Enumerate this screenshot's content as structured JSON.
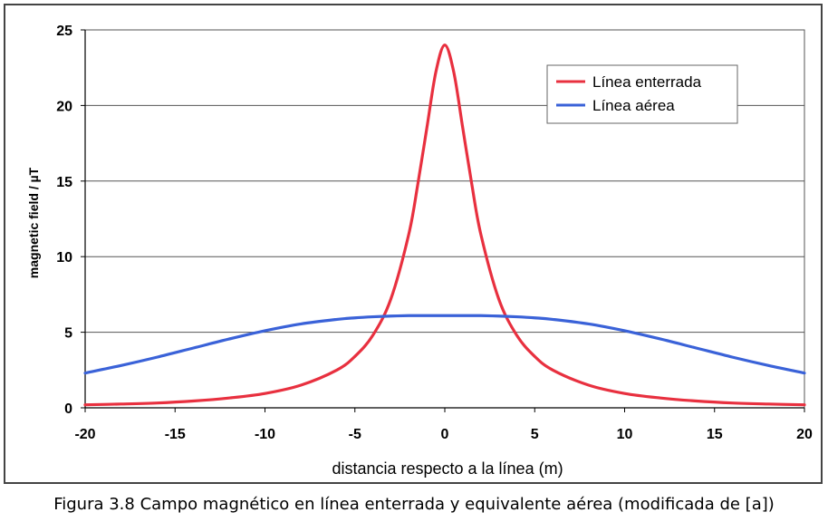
{
  "chart_data": {
    "type": "line",
    "title": "",
    "xlabel": "distancia respecto a la línea (m)",
    "ylabel": "magnetic field / µT",
    "xlim": [
      -20,
      20
    ],
    "ylim": [
      0,
      25
    ],
    "x_ticks": [
      -20,
      -15,
      -10,
      -5,
      0,
      5,
      10,
      15,
      20
    ],
    "y_ticks": [
      0,
      5,
      10,
      15,
      20,
      25
    ],
    "x_tick_labels": [
      "-20",
      "-15",
      "-10",
      "-5",
      "0",
      "5",
      "10",
      "15",
      "20"
    ],
    "y_tick_labels": [
      "0",
      "5",
      "10",
      "15",
      "20",
      "25"
    ],
    "grid": "horizontal",
    "legend_position": "top-right",
    "x": [
      -20,
      -18,
      -16,
      -14,
      -12,
      -10,
      -8,
      -6,
      -5,
      -4,
      -3,
      -2,
      -1.5,
      -1,
      -0.5,
      0,
      0.5,
      1,
      1.5,
      2,
      3,
      4,
      5,
      6,
      8,
      10,
      12,
      14,
      16,
      18,
      20
    ],
    "series": [
      {
        "name": "Línea enterrada",
        "color": "#e8303f",
        "values": [
          0.2,
          0.25,
          0.32,
          0.45,
          0.65,
          0.95,
          1.5,
          2.5,
          3.4,
          4.8,
          7.2,
          11.5,
          14.8,
          18.5,
          22.2,
          24.0,
          22.2,
          18.5,
          14.8,
          11.5,
          7.2,
          4.8,
          3.4,
          2.5,
          1.5,
          0.95,
          0.65,
          0.45,
          0.32,
          0.25,
          0.2
        ]
      },
      {
        "name": "Línea aérea",
        "color": "#3a62d8",
        "values": [
          2.3,
          2.8,
          3.35,
          3.95,
          4.55,
          5.1,
          5.55,
          5.85,
          5.95,
          6.02,
          6.07,
          6.1,
          6.1,
          6.1,
          6.1,
          6.1,
          6.1,
          6.1,
          6.1,
          6.1,
          6.07,
          6.02,
          5.95,
          5.85,
          5.55,
          5.1,
          4.55,
          3.95,
          3.35,
          2.8,
          2.3
        ]
      }
    ]
  },
  "caption": "Figura 3.8 Campo magnético en línea enterrada y equivalente aérea (modificada de [a])"
}
